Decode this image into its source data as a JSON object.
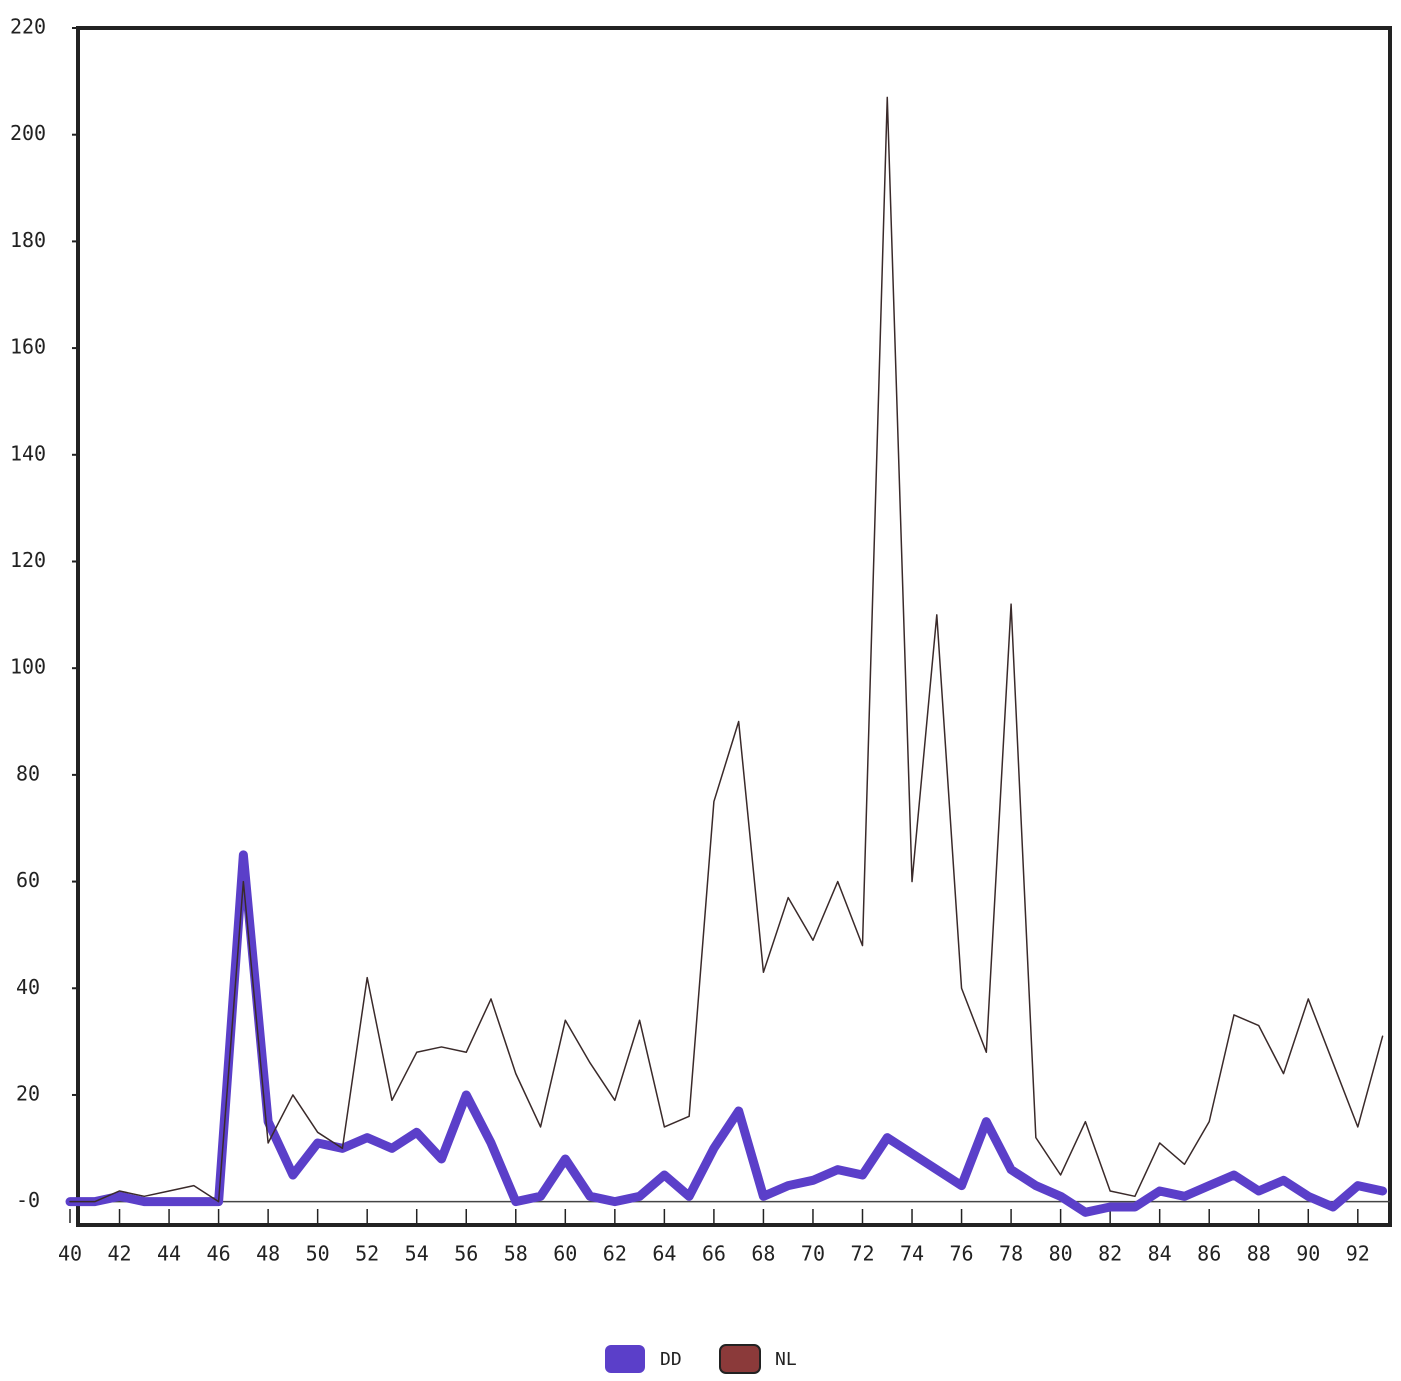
{
  "chart_data": {
    "type": "line",
    "x": [
      40,
      41,
      42,
      43,
      44,
      45,
      46,
      47,
      48,
      49,
      50,
      51,
      52,
      53,
      54,
      55,
      56,
      57,
      58,
      59,
      60,
      61,
      62,
      63,
      64,
      65,
      66,
      67,
      68,
      69,
      70,
      71,
      72,
      73,
      74,
      75,
      76,
      77,
      78,
      79,
      80,
      81,
      82,
      83,
      84,
      85,
      86,
      87,
      88,
      89,
      90,
      91,
      92,
      93
    ],
    "series": [
      {
        "name": "DD",
        "color": "#5b3fc9",
        "width": 9,
        "values": [
          0,
          0,
          1,
          0,
          0,
          0,
          0,
          65,
          15,
          5,
          11,
          10,
          12,
          10,
          13,
          8,
          20,
          11,
          0,
          1,
          8,
          1,
          0,
          1,
          5,
          1,
          10,
          17,
          1,
          3,
          4,
          6,
          5,
          12,
          9,
          6,
          3,
          15,
          6,
          3,
          1,
          -2,
          -1,
          -1,
          2,
          1,
          3,
          5,
          2,
          4,
          1,
          -1,
          3,
          2
        ]
      },
      {
        "name": "NL",
        "color": "#3a2a2a",
        "swatch": "#8b3a3a",
        "width": 1.5,
        "values": [
          0,
          0,
          2,
          1,
          2,
          3,
          0,
          60,
          11,
          20,
          13,
          10,
          42,
          19,
          28,
          29,
          28,
          38,
          24,
          14,
          34,
          26,
          19,
          34,
          14,
          16,
          75,
          90,
          43,
          57,
          49,
          60,
          48,
          207,
          60,
          110,
          40,
          28,
          112,
          12,
          5,
          15,
          2,
          1,
          11,
          7,
          15,
          35,
          33,
          24,
          38,
          26,
          14,
          31
        ]
      }
    ],
    "xlim": [
      40,
      93.3
    ],
    "xticks": [
      40,
      42,
      44,
      46,
      48,
      50,
      52,
      54,
      56,
      58,
      60,
      62,
      64,
      66,
      68,
      70,
      72,
      74,
      76,
      78,
      80,
      82,
      84,
      86,
      88,
      90,
      92
    ],
    "ylim": [
      -4,
      220
    ],
    "yticks": [
      {
        "value": 0,
        "label": "-0"
      },
      20,
      40,
      60,
      80,
      100,
      120,
      140,
      160,
      180,
      200,
      220
    ]
  }
}
